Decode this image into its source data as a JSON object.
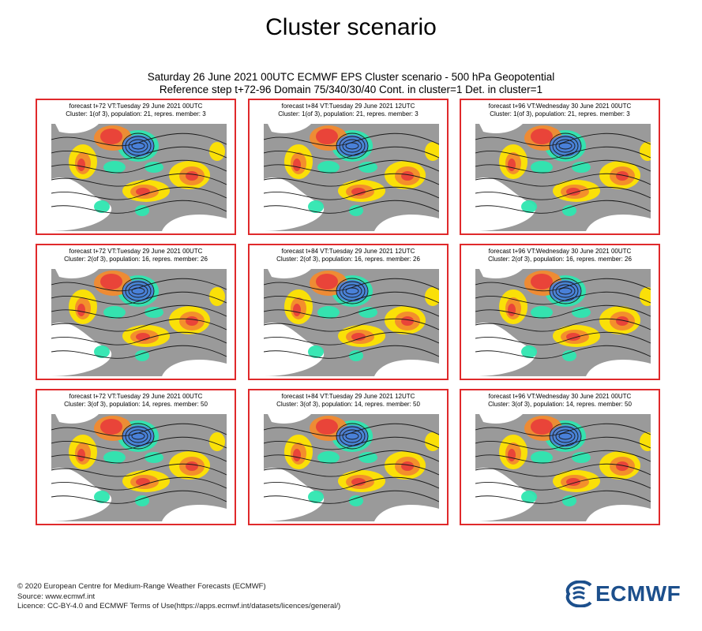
{
  "page_title": "Cluster scenario",
  "header": {
    "line1": "Saturday 26 June 2021 00UTC ECMWF EPS Cluster scenario - 500 hPa Geopotential",
    "line2": "Reference step t+72-96 Domain 75/340/30/40 Cont. in cluster=1 Det. in cluster=1"
  },
  "chart_data": {
    "type": "heatmap",
    "title": "Saturday 26 June 2021 00UTC ECMWF EPS Cluster scenario - 500 hPa Geopotential",
    "variable": "500 hPa Geopotential",
    "domain": "75/340/30/40",
    "panels": [
      {
        "line1": "forecast t+72 VT:Tuesday 29 June 2021 00UTC",
        "line2": "Cluster: 1(of 3), population: 21, repres. member: 3",
        "cluster": 1,
        "population": 21,
        "member": 3,
        "step": 72
      },
      {
        "line1": "forecast t+84 VT:Tuesday 29 June 2021 12UTC",
        "line2": "Cluster: 1(of 3), population: 21, repres. member: 3",
        "cluster": 1,
        "population": 21,
        "member": 3,
        "step": 84
      },
      {
        "line1": "forecast t+96 VT:Wednesday 30 June 2021 00UTC",
        "line2": "Cluster: 1(of 3), population: 21, repres. member: 3",
        "cluster": 1,
        "population": 21,
        "member": 3,
        "step": 96
      },
      {
        "line1": "forecast t+72 VT:Tuesday 29 June 2021 00UTC",
        "line2": "Cluster: 2(of 3), population: 16, repres. member: 26",
        "cluster": 2,
        "population": 16,
        "member": 26,
        "step": 72
      },
      {
        "line1": "forecast t+84 VT:Tuesday 29 June 2021 12UTC",
        "line2": "Cluster: 2(of 3), population: 16, repres. member: 26",
        "cluster": 2,
        "population": 16,
        "member": 26,
        "step": 84
      },
      {
        "line1": "forecast t+96 VT:Wednesday 30 June 2021 00UTC",
        "line2": "Cluster: 2(of 3), population: 16, repres. member: 26",
        "cluster": 2,
        "population": 16,
        "member": 26,
        "step": 96
      },
      {
        "line1": "forecast t+72 VT:Tuesday 29 June 2021 00UTC",
        "line2": "Cluster: 3(of 3), population: 14, repres. member: 50",
        "cluster": 3,
        "population": 14,
        "member": 50,
        "step": 72
      },
      {
        "line1": "forecast t+84 VT:Tuesday 29 June 2021 12UTC",
        "line2": "Cluster: 3(of 3), population: 14, repres. member: 50",
        "cluster": 3,
        "population": 14,
        "member": 50,
        "step": 84
      },
      {
        "line1": "forecast t+96 VT:Wednesday 30 June 2021 00UTC",
        "line2": "Cluster: 3(of 3), population: 14, repres. member: 50",
        "cluster": 3,
        "population": 14,
        "member": 50,
        "step": 96
      }
    ],
    "colors": {
      "land": "#9a9a9a",
      "sea": "#ffffff",
      "panel_border": "#e0292b",
      "high_anomaly": "#e8403a",
      "mid_high": "#f28a2e",
      "low_high": "#ffe400",
      "low_anomaly": "#2ee6b0",
      "deep_low": "#4a7fd8",
      "contour": "#1a1a1a"
    }
  },
  "footer": {
    "line1": "© 2020 European Centre for Medium-Range Weather Forecasts (ECMWF)",
    "line2": "Source: www.ecmwf.int",
    "line3": "Licence: CC-BY-4.0 and ECMWF Terms of Use(https://apps.ecmwf.int/datasets/licences/general/)"
  },
  "logo": {
    "text": "ECMWF",
    "color": "#1c4f8c"
  }
}
